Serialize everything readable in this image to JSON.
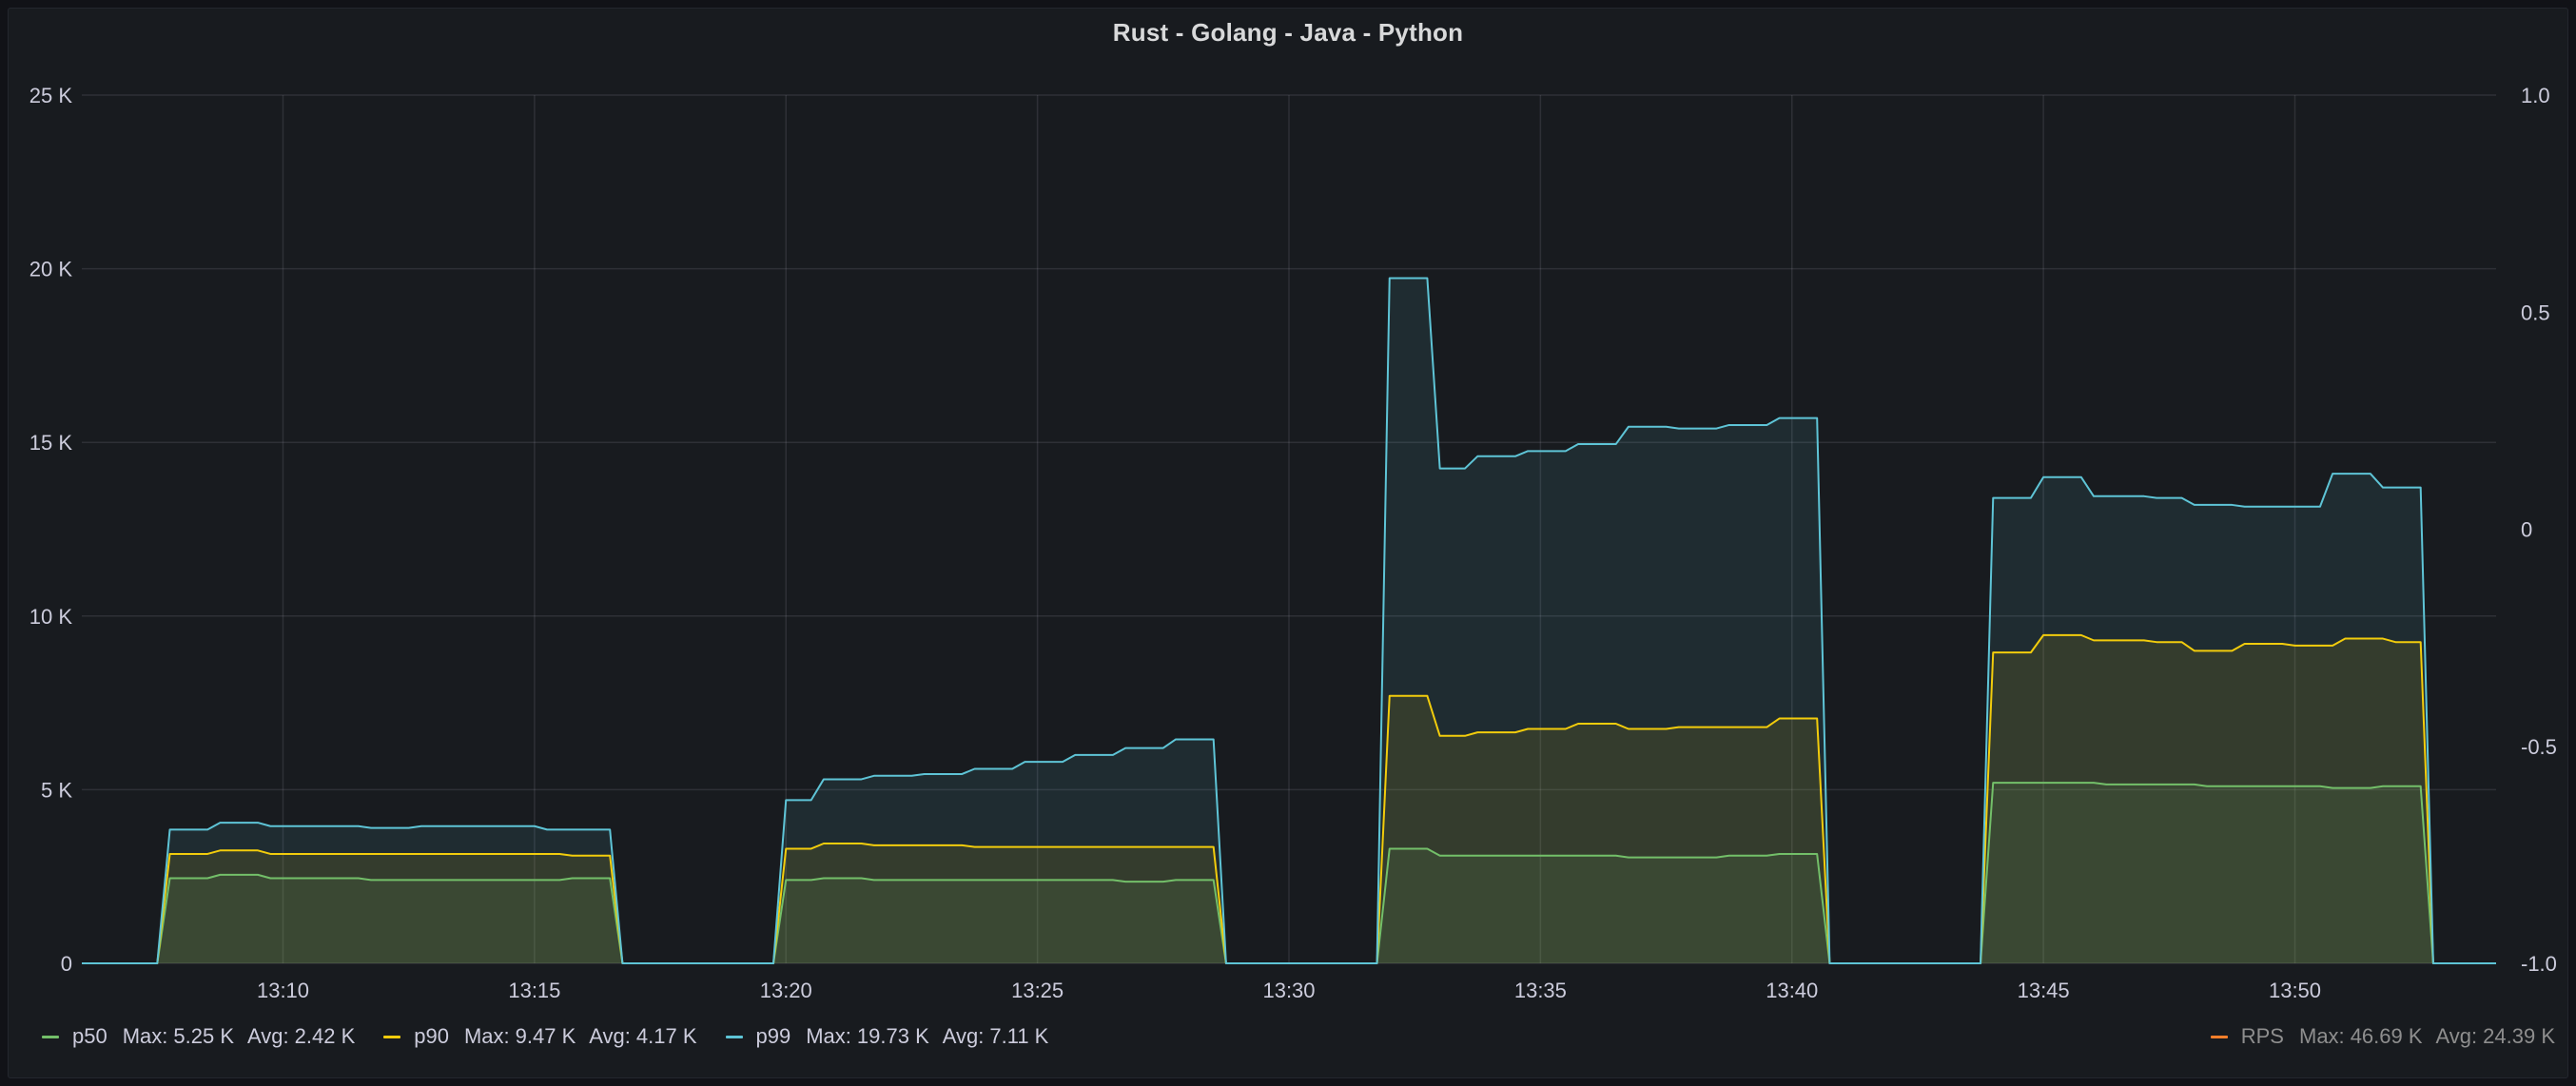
{
  "panel": {
    "title": "Rust - Golang - Java - Python"
  },
  "legend": {
    "items": [
      {
        "name": "p50",
        "color": "#73bf69",
        "max_label": "Max:",
        "max": "5.25 K",
        "avg_label": "Avg:",
        "avg": "2.42 K"
      },
      {
        "name": "p90",
        "color": "#f2cc0c",
        "max_label": "Max:",
        "max": "9.47 K",
        "avg_label": "Avg:",
        "avg": "4.17 K"
      },
      {
        "name": "p99",
        "color": "#5ec4d6",
        "max_label": "Max:",
        "max": "19.73 K",
        "avg_label": "Avg:",
        "avg": "7.11 K"
      }
    ],
    "right": {
      "name": "RPS",
      "color": "#ff7f2a",
      "max_label": "Max:",
      "max": "46.69 K",
      "avg_label": "Avg:",
      "avg": "24.39 K"
    }
  },
  "chart_data": {
    "type": "area",
    "title": "Rust - Golang - Java - Python",
    "x_unit": "minutes",
    "xlim": [
      "13:06:00",
      "13:54:00"
    ],
    "x_ticks": [
      "13:10",
      "13:15",
      "13:20",
      "13:25",
      "13:30",
      "13:35",
      "13:40",
      "13:45",
      "13:50"
    ],
    "ylim": [
      0,
      25000
    ],
    "y_ticks": [
      {
        "value": 0,
        "label": "0"
      },
      {
        "value": 5000,
        "label": "5 K"
      },
      {
        "value": 10000,
        "label": "10 K"
      },
      {
        "value": 15000,
        "label": "15 K"
      },
      {
        "value": 20000,
        "label": "20 K"
      },
      {
        "value": 25000,
        "label": "25 K"
      }
    ],
    "y2lim": [
      -1.0,
      1.0
    ],
    "y2_ticks": [
      {
        "value": -1.0,
        "label": "-1.0"
      },
      {
        "value": -0.5,
        "label": "-0.5"
      },
      {
        "value": 0,
        "label": "0"
      },
      {
        "value": 0.5,
        "label": "0.5"
      },
      {
        "value": 1.0,
        "label": "1.0"
      }
    ],
    "grid": true,
    "legend_position": "bottom",
    "series": [
      {
        "name": "p50",
        "color": "#73bf69",
        "points": [
          [
            "13:06:00",
            0
          ],
          [
            "13:07:30",
            0
          ],
          [
            "13:07:45",
            2450
          ],
          [
            "13:08:30",
            2450
          ],
          [
            "13:08:45",
            2550
          ],
          [
            "13:09:30",
            2550
          ],
          [
            "13:09:45",
            2450
          ],
          [
            "13:11:30",
            2450
          ],
          [
            "13:11:45",
            2400
          ],
          [
            "13:15:30",
            2400
          ],
          [
            "13:15:45",
            2450
          ],
          [
            "13:16:30",
            2450
          ],
          [
            "13:16:45",
            0
          ],
          [
            "13:18:30",
            0
          ],
          [
            "13:19:45",
            0
          ],
          [
            "13:20:00",
            2400
          ],
          [
            "13:20:30",
            2400
          ],
          [
            "13:20:45",
            2450
          ],
          [
            "13:21:30",
            2450
          ],
          [
            "13:21:45",
            2400
          ],
          [
            "13:26:30",
            2400
          ],
          [
            "13:26:45",
            2350
          ],
          [
            "13:27:30",
            2350
          ],
          [
            "13:27:45",
            2400
          ],
          [
            "13:28:30",
            2400
          ],
          [
            "13:28:45",
            0
          ],
          [
            "13:31:45",
            0
          ],
          [
            "13:32:00",
            3300
          ],
          [
            "13:32:45",
            3300
          ],
          [
            "13:33:00",
            3100
          ],
          [
            "13:36:30",
            3100
          ],
          [
            "13:36:45",
            3050
          ],
          [
            "13:38:30",
            3050
          ],
          [
            "13:38:45",
            3100
          ],
          [
            "13:39:30",
            3100
          ],
          [
            "13:39:45",
            3150
          ],
          [
            "13:40:30",
            3150
          ],
          [
            "13:40:45",
            0
          ],
          [
            "13:43:45",
            0
          ],
          [
            "13:44:00",
            5200
          ],
          [
            "13:46:00",
            5200
          ],
          [
            "13:46:15",
            5150
          ],
          [
            "13:48:00",
            5150
          ],
          [
            "13:48:15",
            5100
          ],
          [
            "13:50:30",
            5100
          ],
          [
            "13:50:45",
            5050
          ],
          [
            "13:51:30",
            5050
          ],
          [
            "13:51:45",
            5100
          ],
          [
            "13:52:30",
            5100
          ],
          [
            "13:52:45",
            0
          ],
          [
            "13:54:00",
            0
          ]
        ]
      },
      {
        "name": "p90",
        "color": "#f2cc0c",
        "points": [
          [
            "13:06:00",
            0
          ],
          [
            "13:07:30",
            0
          ],
          [
            "13:07:45",
            3150
          ],
          [
            "13:08:30",
            3150
          ],
          [
            "13:08:45",
            3250
          ],
          [
            "13:09:30",
            3250
          ],
          [
            "13:09:45",
            3150
          ],
          [
            "13:15:30",
            3150
          ],
          [
            "13:15:45",
            3100
          ],
          [
            "13:16:30",
            3100
          ],
          [
            "13:16:45",
            0
          ],
          [
            "13:18:30",
            0
          ],
          [
            "13:19:45",
            0
          ],
          [
            "13:20:00",
            3300
          ],
          [
            "13:20:30",
            3300
          ],
          [
            "13:20:45",
            3450
          ],
          [
            "13:21:30",
            3450
          ],
          [
            "13:21:45",
            3400
          ],
          [
            "13:23:30",
            3400
          ],
          [
            "13:23:45",
            3350
          ],
          [
            "13:28:30",
            3350
          ],
          [
            "13:28:45",
            0
          ],
          [
            "13:31:45",
            0
          ],
          [
            "13:32:00",
            7700
          ],
          [
            "13:32:45",
            7700
          ],
          [
            "13:33:00",
            6550
          ],
          [
            "13:33:30",
            6550
          ],
          [
            "13:33:45",
            6650
          ],
          [
            "13:34:30",
            6650
          ],
          [
            "13:34:45",
            6750
          ],
          [
            "13:35:30",
            6750
          ],
          [
            "13:35:45",
            6900
          ],
          [
            "13:36:30",
            6900
          ],
          [
            "13:36:45",
            6750
          ],
          [
            "13:37:30",
            6750
          ],
          [
            "13:37:45",
            6800
          ],
          [
            "13:39:30",
            6800
          ],
          [
            "13:39:45",
            7050
          ],
          [
            "13:40:30",
            7050
          ],
          [
            "13:40:45",
            0
          ],
          [
            "13:43:45",
            0
          ],
          [
            "13:44:00",
            8950
          ],
          [
            "13:44:45",
            8950
          ],
          [
            "13:45:00",
            9450
          ],
          [
            "13:45:45",
            9450
          ],
          [
            "13:46:00",
            9300
          ],
          [
            "13:47:00",
            9300
          ],
          [
            "13:47:15",
            9250
          ],
          [
            "13:47:45",
            9250
          ],
          [
            "13:48:00",
            9000
          ],
          [
            "13:48:45",
            9000
          ],
          [
            "13:49:00",
            9200
          ],
          [
            "13:49:45",
            9200
          ],
          [
            "13:50:00",
            9150
          ],
          [
            "13:50:45",
            9150
          ],
          [
            "13:51:00",
            9350
          ],
          [
            "13:51:45",
            9350
          ],
          [
            "13:52:00",
            9250
          ],
          [
            "13:52:30",
            9250
          ],
          [
            "13:52:45",
            0
          ],
          [
            "13:54:00",
            0
          ]
        ]
      },
      {
        "name": "p99",
        "color": "#5ec4d6",
        "points": [
          [
            "13:06:00",
            0
          ],
          [
            "13:07:30",
            0
          ],
          [
            "13:07:45",
            3850
          ],
          [
            "13:08:30",
            3850
          ],
          [
            "13:08:45",
            4050
          ],
          [
            "13:09:30",
            4050
          ],
          [
            "13:09:45",
            3950
          ],
          [
            "13:11:30",
            3950
          ],
          [
            "13:11:45",
            3900
          ],
          [
            "13:12:30",
            3900
          ],
          [
            "13:12:45",
            3950
          ],
          [
            "13:15:00",
            3950
          ],
          [
            "13:15:15",
            3850
          ],
          [
            "13:16:30",
            3850
          ],
          [
            "13:16:45",
            0
          ],
          [
            "13:18:30",
            0
          ],
          [
            "13:19:45",
            0
          ],
          [
            "13:20:00",
            4700
          ],
          [
            "13:20:30",
            4700
          ],
          [
            "13:20:45",
            5300
          ],
          [
            "13:21:30",
            5300
          ],
          [
            "13:21:45",
            5400
          ],
          [
            "13:22:30",
            5400
          ],
          [
            "13:22:45",
            5450
          ],
          [
            "13:23:30",
            5450
          ],
          [
            "13:23:45",
            5600
          ],
          [
            "13:24:30",
            5600
          ],
          [
            "13:24:45",
            5800
          ],
          [
            "13:25:30",
            5800
          ],
          [
            "13:25:45",
            6000
          ],
          [
            "13:26:30",
            6000
          ],
          [
            "13:26:45",
            6200
          ],
          [
            "13:27:30",
            6200
          ],
          [
            "13:27:45",
            6450
          ],
          [
            "13:28:30",
            6450
          ],
          [
            "13:28:45",
            0
          ],
          [
            "13:31:45",
            0
          ],
          [
            "13:32:00",
            19730
          ],
          [
            "13:32:45",
            19730
          ],
          [
            "13:33:00",
            14250
          ],
          [
            "13:33:30",
            14250
          ],
          [
            "13:33:45",
            14600
          ],
          [
            "13:34:30",
            14600
          ],
          [
            "13:34:45",
            14750
          ],
          [
            "13:35:30",
            14750
          ],
          [
            "13:35:45",
            14950
          ],
          [
            "13:36:30",
            14950
          ],
          [
            "13:36:45",
            15450
          ],
          [
            "13:37:30",
            15450
          ],
          [
            "13:37:45",
            15400
          ],
          [
            "13:38:30",
            15400
          ],
          [
            "13:38:45",
            15500
          ],
          [
            "13:39:30",
            15500
          ],
          [
            "13:39:45",
            15700
          ],
          [
            "13:40:30",
            15700
          ],
          [
            "13:40:45",
            0
          ],
          [
            "13:43:45",
            0
          ],
          [
            "13:44:00",
            13400
          ],
          [
            "13:44:45",
            13400
          ],
          [
            "13:45:00",
            14000
          ],
          [
            "13:45:45",
            14000
          ],
          [
            "13:46:00",
            13450
          ],
          [
            "13:47:00",
            13450
          ],
          [
            "13:47:15",
            13400
          ],
          [
            "13:47:45",
            13400
          ],
          [
            "13:48:00",
            13200
          ],
          [
            "13:48:45",
            13200
          ],
          [
            "13:49:00",
            13150
          ],
          [
            "13:50:30",
            13150
          ],
          [
            "13:50:45",
            14100
          ],
          [
            "13:51:30",
            14100
          ],
          [
            "13:51:45",
            13700
          ],
          [
            "13:52:30",
            13700
          ],
          [
            "13:52:45",
            0
          ],
          [
            "13:54:00",
            0
          ]
        ]
      }
    ],
    "right_axis_series": {
      "name": "RPS",
      "color": "#ff7f2a",
      "max": "46.69 K",
      "avg": "24.39 K"
    }
  }
}
